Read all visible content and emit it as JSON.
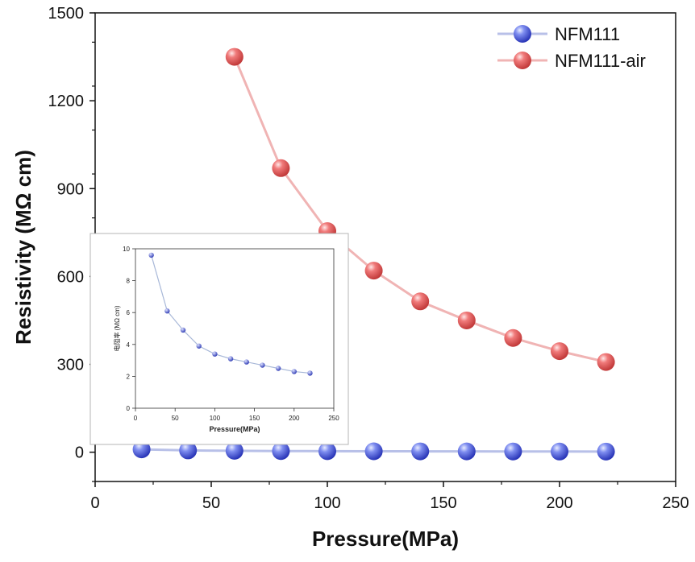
{
  "chart_data": [
    {
      "type": "line",
      "xlabel": "Pressure(MPa)",
      "ylabel": "Resistivity (MΩ cm)",
      "xlim": [
        0,
        250
      ],
      "ylim": [
        -100,
        1500
      ],
      "xticks": [
        0,
        50,
        100,
        150,
        200,
        250
      ],
      "yticks": [
        0,
        300,
        600,
        900,
        1200,
        1500
      ],
      "grid": false,
      "legend_position": "top-right",
      "series": [
        {
          "name": "NFM111",
          "color": "#4a5ad8",
          "line_color": "#b8c0e8",
          "x": [
            20,
            40,
            60,
            80,
            100,
            120,
            140,
            160,
            180,
            200,
            220
          ],
          "values": [
            9.6,
            6.1,
            4.9,
            3.9,
            3.4,
            3.1,
            2.9,
            2.7,
            2.5,
            2.3,
            2.2
          ]
        },
        {
          "name": "NFM111-air",
          "color": "#e05a5a",
          "line_color": "#f0b4b4",
          "x": [
            60,
            80,
            100,
            120,
            140,
            160,
            180,
            200,
            220
          ],
          "values": [
            1350,
            970,
            755,
            620,
            515,
            450,
            390,
            345,
            308
          ]
        }
      ]
    },
    {
      "type": "line",
      "xlabel": "Pressure(MPa)",
      "ylabel": "电阻率 (MΩ cm)",
      "xlim": [
        0,
        250
      ],
      "ylim": [
        0,
        10
      ],
      "xticks": [
        0,
        50,
        100,
        150,
        200,
        250
      ],
      "yticks": [
        0,
        2,
        4,
        6,
        8,
        10
      ],
      "grid": false,
      "series": [
        {
          "color": "#4a5ad8",
          "line_color": "#a8b8d8",
          "x": [
            20,
            40,
            60,
            80,
            100,
            120,
            140,
            160,
            180,
            200,
            220
          ],
          "values": [
            9.6,
            6.1,
            4.9,
            3.9,
            3.4,
            3.1,
            2.9,
            2.7,
            2.5,
            2.3,
            2.2
          ]
        }
      ]
    }
  ]
}
